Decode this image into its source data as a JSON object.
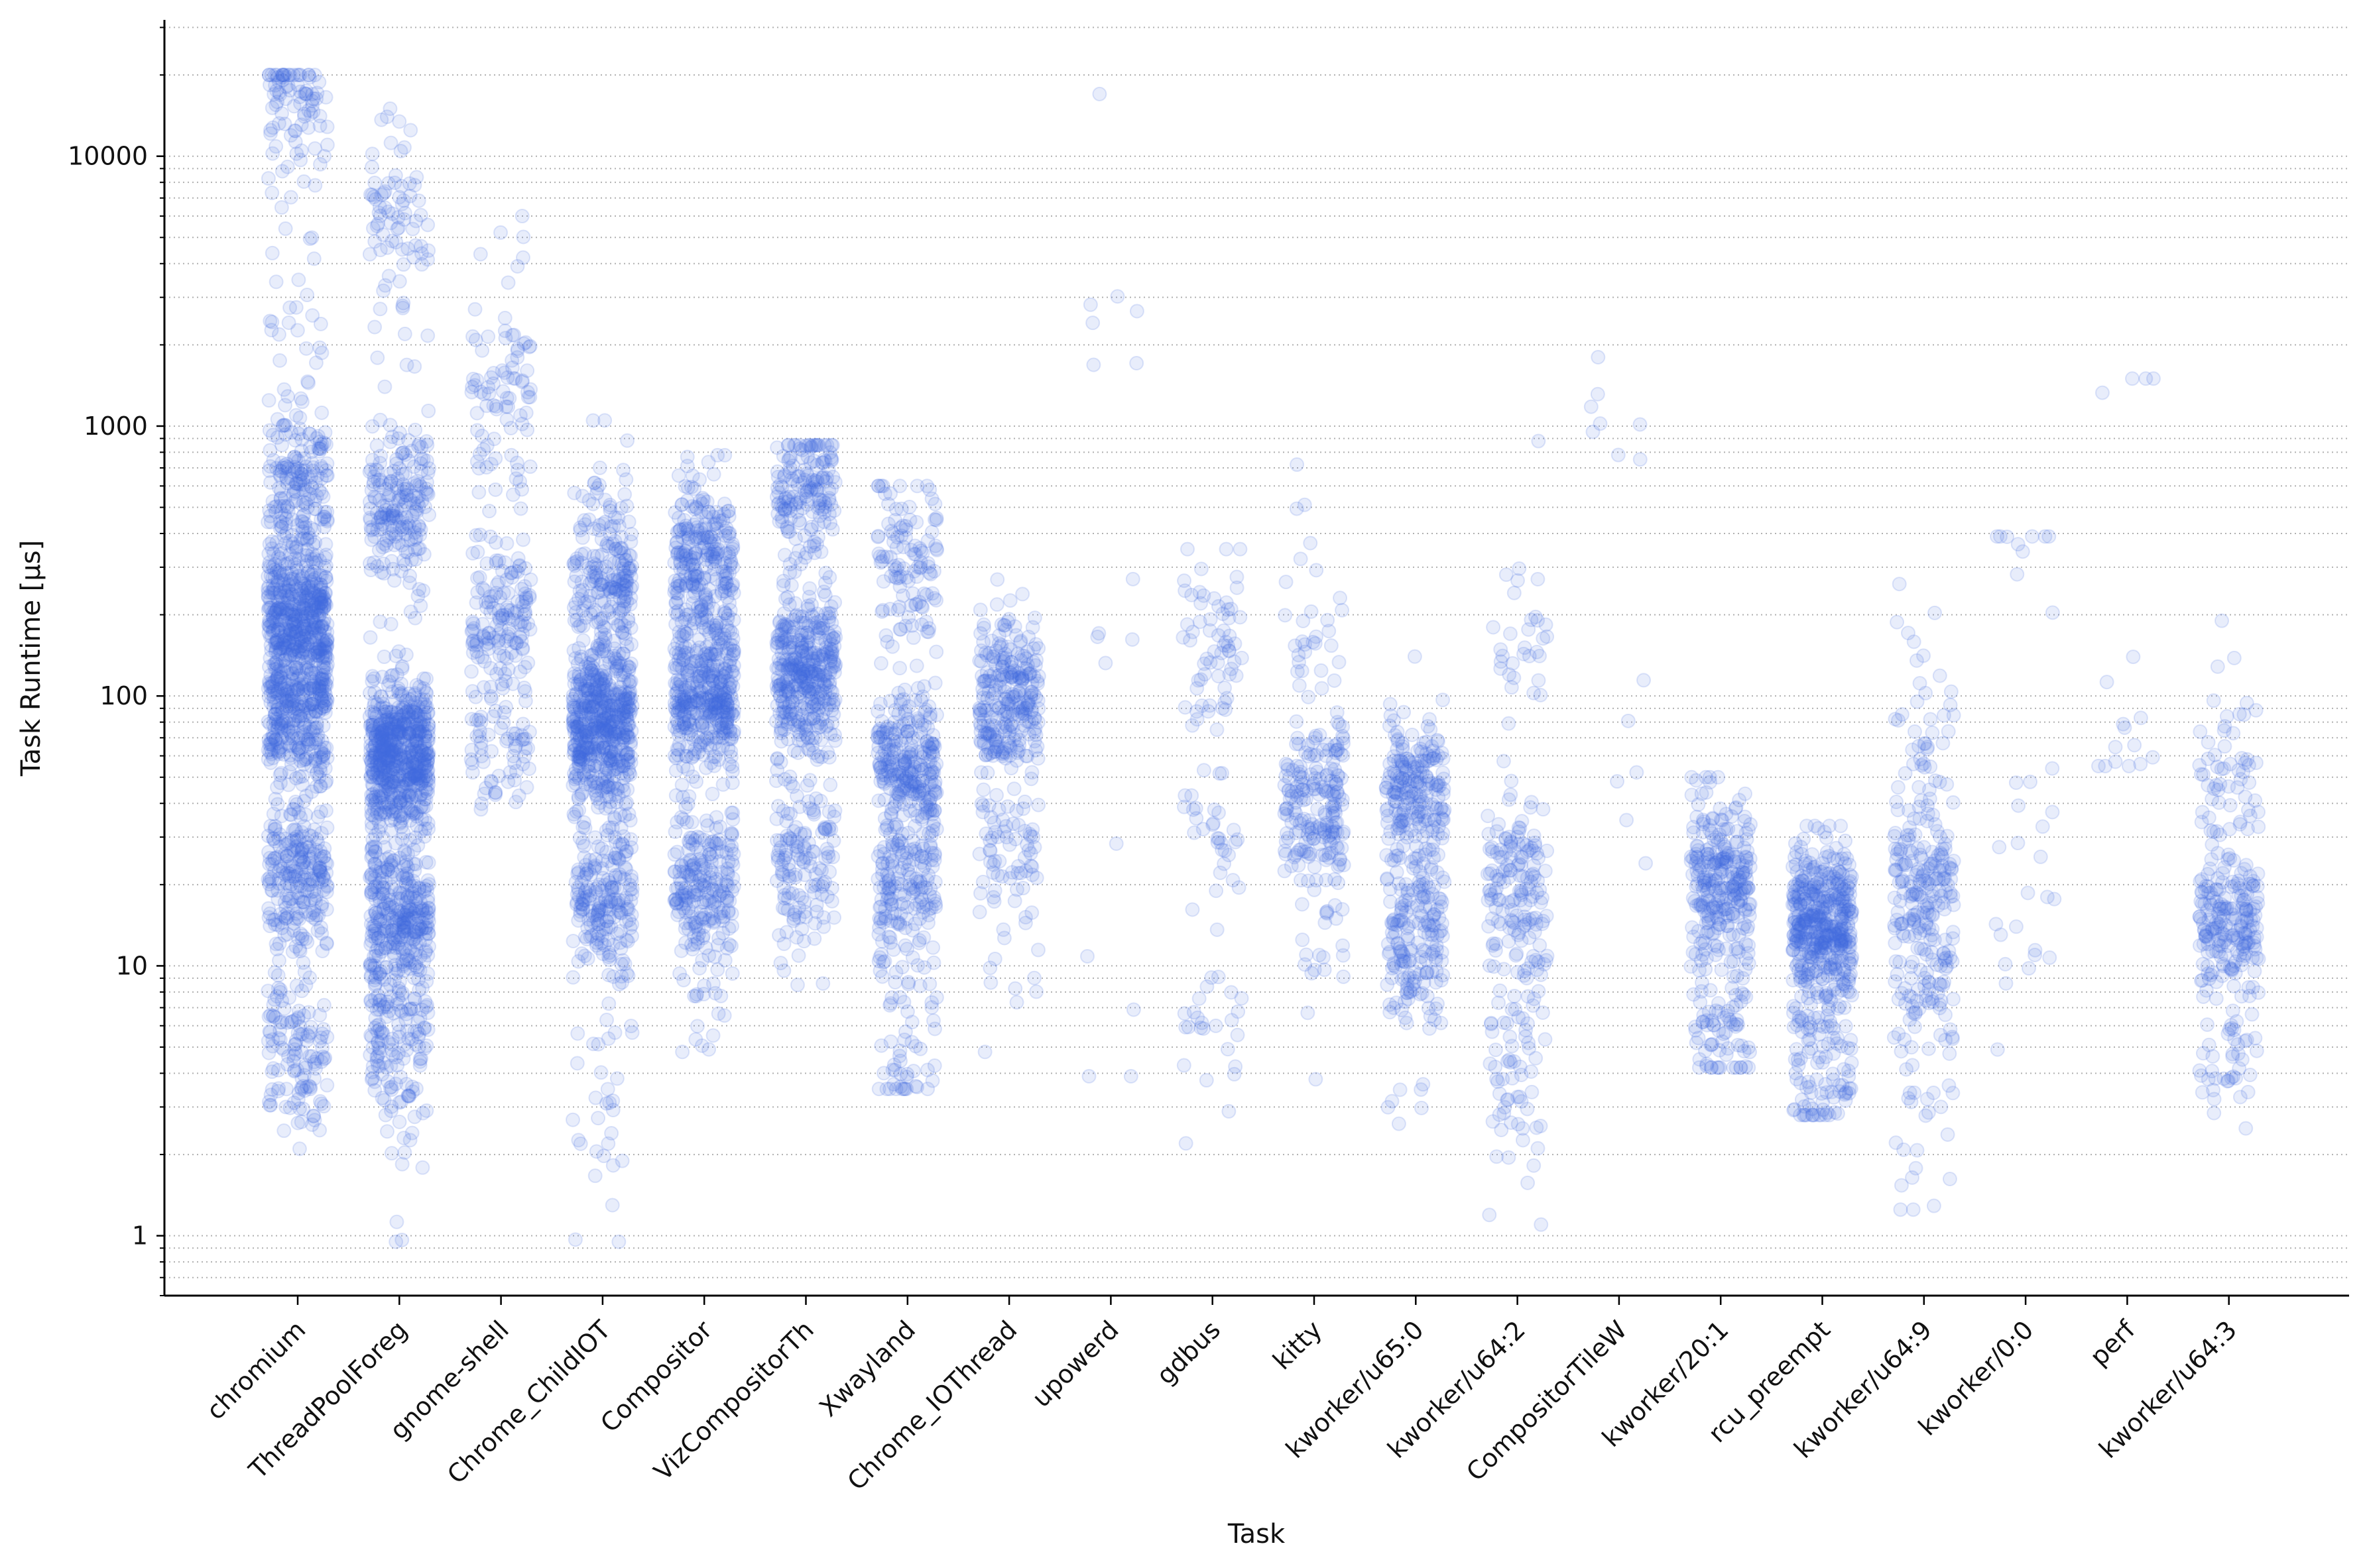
{
  "chart_data": {
    "type": "scatter",
    "subtype": "strip / jitter plot",
    "xlabel": "Task",
    "ylabel": "Task Runtime [µs]",
    "yscale": "log",
    "ylim": [
      0.6,
      32000
    ],
    "y_ticks": [
      1,
      10,
      100,
      1000,
      10000
    ],
    "y_tick_labels": [
      "1",
      "10",
      "100",
      "1000",
      "10000"
    ],
    "grid": "horizontal dotted lines at major and minor log ticks",
    "legend": "none",
    "marker_color": "#4169e1",
    "marker_alpha": 0.12,
    "categories": [
      "chromium",
      "ThreadPoolForeg",
      "gnome-shell",
      "Chrome_ChildIOT",
      "Compositor",
      "VizCompositorTh",
      "Xwayland",
      "Chrome_IOThread",
      "upowerd",
      "gdbus",
      "kitty",
      "kworker/u65:0",
      "kworker/u64:2",
      "CompositorTileW",
      "kworker/20:1",
      "rcu_preempt",
      "kworker/u64:9",
      "kworker/0:0",
      "perf",
      "kworker/u64:3"
    ],
    "series": [
      {
        "category": "chromium",
        "n": 1500,
        "y_min": 2.1,
        "y_max": 20000,
        "clusters": [
          {
            "center": 200,
            "share": 0.35
          },
          {
            "center": 90,
            "share": 0.25
          },
          {
            "center": 22,
            "share": 0.15
          },
          {
            "center": 600,
            "share": 0.12
          },
          {
            "center": 15000,
            "share": 0.05
          },
          {
            "center": 5,
            "share": 0.08
          }
        ]
      },
      {
        "category": "ThreadPoolForeg",
        "n": 1400,
        "y_min": 0.95,
        "y_max": 15000,
        "clusters": [
          {
            "center": 60,
            "share": 0.45
          },
          {
            "center": 15,
            "share": 0.25
          },
          {
            "center": 500,
            "share": 0.15
          },
          {
            "center": 5,
            "share": 0.1
          },
          {
            "center": 6000,
            "share": 0.05
          }
        ]
      },
      {
        "category": "gnome-shell",
        "n": 300,
        "y_min": 38,
        "y_max": 6000,
        "clusters": [
          {
            "center": 190,
            "share": 0.5
          },
          {
            "center": 1250,
            "share": 0.3
          },
          {
            "center": 60,
            "share": 0.2
          }
        ]
      },
      {
        "category": "Chrome_ChildIOT",
        "n": 1000,
        "y_min": 0.95,
        "y_max": 1050,
        "clusters": [
          {
            "center": 80,
            "share": 0.6
          },
          {
            "center": 280,
            "share": 0.2
          },
          {
            "center": 18,
            "share": 0.2
          }
        ]
      },
      {
        "category": "Compositor",
        "n": 900,
        "y_min": 4.8,
        "y_max": 780,
        "clusters": [
          {
            "center": 100,
            "share": 0.5
          },
          {
            "center": 300,
            "share": 0.25
          },
          {
            "center": 20,
            "share": 0.25
          }
        ]
      },
      {
        "category": "VizCompositorTh",
        "n": 700,
        "y_min": 8.5,
        "y_max": 850,
        "clusters": [
          {
            "center": 120,
            "share": 0.6
          },
          {
            "center": 600,
            "share": 0.2
          },
          {
            "center": 25,
            "share": 0.2
          }
        ]
      },
      {
        "category": "Xwayland",
        "n": 600,
        "y_min": 3.5,
        "y_max": 600,
        "clusters": [
          {
            "center": 55,
            "share": 0.45
          },
          {
            "center": 20,
            "share": 0.3
          },
          {
            "center": 5,
            "share": 0.1
          },
          {
            "center": 300,
            "share": 0.15
          }
        ]
      },
      {
        "category": "Chrome_IOThread",
        "n": 350,
        "y_min": 4.8,
        "y_max": 270,
        "clusters": [
          {
            "center": 100,
            "share": 0.8
          },
          {
            "center": 25,
            "share": 0.2
          }
        ]
      },
      {
        "category": "upowerd",
        "n": 15,
        "y_min": 3.9,
        "y_max": 17000,
        "clusters": [
          {
            "center": 2200,
            "share": 0.4
          },
          {
            "center": 150,
            "share": 0.2
          },
          {
            "center": 6,
            "share": 0.4
          }
        ]
      },
      {
        "category": "gdbus",
        "n": 120,
        "y_min": 2.2,
        "y_max": 350,
        "clusters": [
          {
            "center": 150,
            "share": 0.5
          },
          {
            "center": 30,
            "share": 0.3
          },
          {
            "center": 6,
            "share": 0.2
          }
        ]
      },
      {
        "category": "kitty",
        "n": 250,
        "y_min": 3.8,
        "y_max": 720,
        "clusters": [
          {
            "center": 40,
            "share": 0.85
          },
          {
            "center": 150,
            "share": 0.1
          },
          {
            "center": 12,
            "share": 0.05
          }
        ]
      },
      {
        "category": "kworker/u65:0",
        "n": 400,
        "y_min": 2.6,
        "y_max": 140,
        "clusters": [
          {
            "center": 47,
            "share": 0.45
          },
          {
            "center": 12,
            "share": 0.35
          },
          {
            "center": 30,
            "share": 0.2
          }
        ]
      },
      {
        "category": "kworker/u64:2",
        "n": 250,
        "y_min": 1.1,
        "y_max": 880,
        "clusters": [
          {
            "center": 20,
            "share": 0.6
          },
          {
            "center": 7,
            "share": 0.2
          },
          {
            "center": 150,
            "share": 0.1
          },
          {
            "center": 3,
            "share": 0.1
          }
        ]
      },
      {
        "category": "CompositorTileW",
        "n": 12,
        "y_min": 24,
        "y_max": 1800,
        "clusters": [
          {
            "center": 700,
            "share": 0.6
          },
          {
            "center": 50,
            "share": 0.4
          }
        ]
      },
      {
        "category": "kworker/20:1",
        "n": 350,
        "y_min": 4.2,
        "y_max": 50,
        "clusters": [
          {
            "center": 20,
            "share": 0.85
          },
          {
            "center": 6,
            "share": 0.15
          }
        ]
      },
      {
        "category": "rcu_preempt",
        "n": 550,
        "y_min": 2.8,
        "y_max": 33,
        "clusters": [
          {
            "center": 14,
            "share": 0.85
          },
          {
            "center": 4,
            "share": 0.15
          }
        ]
      },
      {
        "category": "kworker/u64:9",
        "n": 300,
        "y_min": 1.25,
        "y_max": 260,
        "clusters": [
          {
            "center": 20,
            "share": 0.6
          },
          {
            "center": 8,
            "share": 0.25
          },
          {
            "center": 60,
            "share": 0.1
          },
          {
            "center": 2.5,
            "share": 0.05
          }
        ]
      },
      {
        "category": "kworker/0:0",
        "n": 30,
        "y_min": 4.9,
        "y_max": 390,
        "clusters": [
          {
            "center": 360,
            "share": 0.3
          },
          {
            "center": 30,
            "share": 0.5
          },
          {
            "center": 10,
            "share": 0.2
          }
        ]
      },
      {
        "category": "perf",
        "n": 15,
        "y_min": 55,
        "y_max": 1500,
        "clusters": [
          {
            "center": 62,
            "share": 0.6
          },
          {
            "center": 140,
            "share": 0.2
          },
          {
            "center": 1450,
            "share": 0.2
          }
        ]
      },
      {
        "category": "kworker/u64:3",
        "n": 300,
        "y_min": 2.5,
        "y_max": 190,
        "clusters": [
          {
            "center": 15,
            "share": 0.7
          },
          {
            "center": 5,
            "share": 0.15
          },
          {
            "center": 50,
            "share": 0.15
          }
        ]
      }
    ]
  }
}
